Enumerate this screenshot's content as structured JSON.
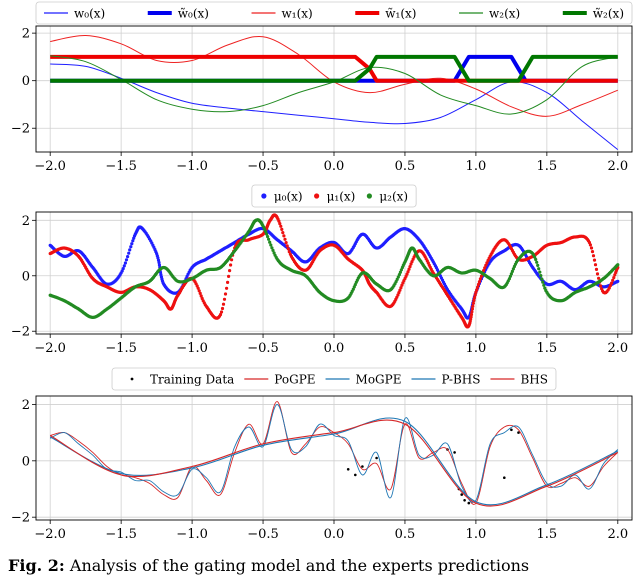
{
  "panels": [
    {
      "id": "gating",
      "xlim": [
        -2.1,
        2.1
      ],
      "ylim": [
        -3.0,
        2.3
      ],
      "yticks": [
        -2,
        0,
        2
      ],
      "xticks": [
        -2.0,
        -1.5,
        -1.0,
        -0.5,
        0.0,
        0.5,
        1.0,
        1.5,
        2.0
      ],
      "xtick_labels": [
        "−2.0",
        "−1.5",
        "−1.0",
        "−0.5",
        "0.0",
        "0.5",
        "1.0",
        "1.5",
        "2.0"
      ],
      "ytick_labels": [
        "−2",
        "0",
        "2"
      ],
      "grid": true,
      "legend": {
        "placement": "top",
        "entries": [
          {
            "label": "w₀(x)",
            "color": "#1f1fff",
            "style": "line",
            "width": "thin"
          },
          {
            "label": "w̃₀(x)",
            "color": "#0000ee",
            "style": "line",
            "width": "thick"
          },
          {
            "label": "w₁(x)",
            "color": "#ee2222",
            "style": "line",
            "width": "thin"
          },
          {
            "label": "w̃₁(x)",
            "color": "#ee0000",
            "style": "line",
            "width": "thick"
          },
          {
            "label": "w₂(x)",
            "color": "#228b22",
            "style": "line",
            "width": "thin"
          },
          {
            "label": "w̃₂(x)",
            "color": "#007700",
            "style": "line",
            "width": "thick"
          }
        ]
      }
    },
    {
      "id": "experts",
      "xlim": [
        -2.1,
        2.1
      ],
      "ylim": [
        -2.1,
        2.3
      ],
      "yticks": [
        -2,
        0,
        2
      ],
      "xticks": [
        -2.0,
        -1.5,
        -1.0,
        -0.5,
        0.0,
        0.5,
        1.0,
        1.5,
        2.0
      ],
      "xtick_labels": [
        "−2.0",
        "−1.5",
        "−1.0",
        "−0.5",
        "0.0",
        "0.5",
        "1.0",
        "1.5",
        "2.0"
      ],
      "ytick_labels": [
        "−2",
        "0",
        "2"
      ],
      "grid": true,
      "legend": {
        "placement": "top",
        "entries": [
          {
            "label": "μ₀(x)",
            "color": "#1f1fff",
            "style": "marker"
          },
          {
            "label": "μ₁(x)",
            "color": "#ee1111",
            "style": "marker"
          },
          {
            "label": "μ₂(x)",
            "color": "#228b22",
            "style": "marker"
          }
        ]
      }
    },
    {
      "id": "predictions",
      "xlim": [
        -2.1,
        2.1
      ],
      "ylim": [
        -2.1,
        2.3
      ],
      "yticks": [
        -2,
        0,
        2
      ],
      "xticks": [
        -2.0,
        -1.5,
        -1.0,
        -0.5,
        0.0,
        0.5,
        1.0,
        1.5,
        2.0
      ],
      "xtick_labels": [
        "−2.0",
        "−1.5",
        "−1.0",
        "−0.5",
        "0.0",
        "0.5",
        "1.0",
        "1.5",
        "2.0"
      ],
      "ytick_labels": [
        "−2",
        "0",
        "2"
      ],
      "grid": true,
      "legend": {
        "placement": "top",
        "entries": [
          {
            "label": "Training Data",
            "color": "#000000",
            "style": "dot"
          },
          {
            "label": "PoGPE",
            "color": "#d62728",
            "style": "line"
          },
          {
            "label": "MoGPE",
            "color": "#1f77b4",
            "style": "line"
          },
          {
            "label": "P-BHS",
            "color": "#1f77b4",
            "style": "line"
          },
          {
            "label": "BHS",
            "color": "#d62728",
            "style": "line"
          }
        ]
      }
    }
  ],
  "chart_data": [
    {
      "type": "line",
      "panel": "gating",
      "series": [
        {
          "name": "w₀(x)",
          "color": "#1f1fff",
          "x": [
            -2.0,
            -1.75,
            -1.5,
            -1.25,
            -1.0,
            -0.75,
            -0.5,
            -0.25,
            0.0,
            0.25,
            0.5,
            0.75,
            1.0,
            1.25,
            1.5,
            1.75,
            2.0
          ],
          "y": [
            0.7,
            0.6,
            0.1,
            -0.5,
            -0.95,
            -1.15,
            -1.3,
            -1.45,
            -1.6,
            -1.75,
            -1.8,
            -1.55,
            -0.8,
            -0.05,
            -0.5,
            -1.7,
            -2.9
          ]
        },
        {
          "name": "w̃₀(x)",
          "color": "#0000ee",
          "x": [
            -2.0,
            0.85,
            0.9,
            0.95,
            1.25,
            1.3,
            1.35,
            2.0
          ],
          "y": [
            0,
            0,
            0.5,
            1.0,
            1.0,
            0.5,
            0,
            0
          ]
        },
        {
          "name": "w₁(x)",
          "color": "#ee2222",
          "x": [
            -2.0,
            -1.75,
            -1.5,
            -1.25,
            -1.0,
            -0.75,
            -0.5,
            -0.25,
            0.0,
            0.25,
            0.5,
            0.75,
            1.0,
            1.25,
            1.5,
            1.75,
            2.0
          ],
          "y": [
            1.65,
            1.9,
            1.55,
            0.85,
            0.85,
            1.5,
            1.85,
            1.1,
            -0.05,
            -0.5,
            -0.15,
            0.1,
            -0.35,
            -1.1,
            -1.5,
            -1.0,
            -0.4
          ]
        },
        {
          "name": "w̃₁(x)",
          "color": "#ee0000",
          "x": [
            -2.0,
            0.15,
            0.25,
            0.3,
            2.0
          ],
          "y": [
            1.0,
            1.0,
            0.5,
            0,
            0
          ]
        },
        {
          "name": "w₂(x)",
          "color": "#228b22",
          "x": [
            -2.0,
            -1.75,
            -1.5,
            -1.25,
            -1.0,
            -0.75,
            -0.5,
            -0.25,
            0.0,
            0.25,
            0.5,
            0.75,
            1.0,
            1.25,
            1.5,
            1.75,
            2.0
          ],
          "y": [
            1.05,
            0.8,
            0.05,
            -0.8,
            -1.2,
            -1.3,
            -1.05,
            -0.5,
            -0.05,
            0.55,
            0.3,
            -0.6,
            -1.05,
            -1.4,
            -0.8,
            0.6,
            1.0
          ]
        },
        {
          "name": "w̃₂(x)",
          "color": "#007700",
          "x": [
            -2.0,
            0.15,
            0.25,
            0.3,
            0.85,
            0.9,
            0.95,
            1.3,
            1.35,
            1.4,
            2.0
          ],
          "y": [
            0,
            0,
            0.5,
            1.0,
            1.0,
            0.5,
            0,
            0,
            0.5,
            1.0,
            1.0
          ]
        }
      ],
      "xlabel": "",
      "ylabel": ""
    },
    {
      "type": "scatter",
      "panel": "experts",
      "series": [
        {
          "name": "μ₀(x)",
          "color": "#1f1fff",
          "x": [
            -2.0,
            -1.9,
            -1.8,
            -1.7,
            -1.6,
            -1.5,
            -1.4,
            -1.35,
            -1.25,
            -1.2,
            -1.1,
            -1.0,
            -0.9,
            -0.8,
            -0.7,
            -0.6,
            -0.5,
            -0.4,
            -0.3,
            -0.2,
            -0.1,
            0.0,
            0.1,
            0.2,
            0.3,
            0.4,
            0.5,
            0.6,
            0.7,
            0.8,
            0.9,
            0.95,
            1.0,
            1.1,
            1.2,
            1.3,
            1.4,
            1.5,
            1.6,
            1.7,
            1.8,
            1.9,
            2.0
          ],
          "y": [
            1.1,
            0.7,
            0.9,
            0.3,
            -0.3,
            0.1,
            1.5,
            1.7,
            0.8,
            -0.3,
            -0.6,
            0.3,
            0.6,
            0.9,
            1.2,
            1.5,
            1.7,
            1.3,
            0.9,
            0.5,
            1.0,
            1.2,
            0.8,
            1.5,
            1.0,
            1.4,
            1.7,
            1.3,
            0.5,
            -0.5,
            -1.2,
            -1.5,
            -0.6,
            0.5,
            0.9,
            1.1,
            0.3,
            -0.3,
            -0.2,
            -0.5,
            -0.2,
            -0.4,
            -0.2
          ]
        },
        {
          "name": "μ₁(x)",
          "color": "#ee1111",
          "x": [
            -2.0,
            -1.9,
            -1.8,
            -1.7,
            -1.6,
            -1.5,
            -1.4,
            -1.3,
            -1.2,
            -1.15,
            -1.1,
            -1.0,
            -0.9,
            -0.8,
            -0.7,
            -0.6,
            -0.5,
            -0.45,
            -0.4,
            -0.3,
            -0.2,
            -0.1,
            0.0,
            0.1,
            0.2,
            0.25,
            0.3,
            0.4,
            0.5,
            0.6,
            0.7,
            0.8,
            0.9,
            0.95,
            1.0,
            1.1,
            1.2,
            1.3,
            1.4,
            1.5,
            1.6,
            1.7,
            1.8,
            1.9,
            2.0
          ],
          "y": [
            0.8,
            1.0,
            0.7,
            -0.1,
            -0.4,
            -0.6,
            -0.4,
            -0.5,
            -0.9,
            -1.2,
            -0.7,
            -0.1,
            -1.1,
            -1.4,
            1.0,
            1.3,
            1.5,
            2.0,
            2.1,
            0.7,
            0.2,
            0.9,
            1.1,
            0.6,
            0.2,
            -0.3,
            -0.6,
            -1.1,
            -0.1,
            0.9,
            0.1,
            -0.7,
            -1.5,
            -1.8,
            -0.6,
            0.7,
            1.3,
            0.6,
            0.7,
            1.1,
            1.2,
            1.4,
            1.2,
            -0.6,
            0.3
          ]
        },
        {
          "name": "μ₂(x)",
          "color": "#228b22",
          "x": [
            -2.0,
            -1.9,
            -1.8,
            -1.7,
            -1.6,
            -1.5,
            -1.4,
            -1.3,
            -1.2,
            -1.1,
            -1.0,
            -0.9,
            -0.8,
            -0.7,
            -0.6,
            -0.55,
            -0.5,
            -0.4,
            -0.3,
            -0.2,
            -0.1,
            0.0,
            0.1,
            0.2,
            0.3,
            0.4,
            0.5,
            0.55,
            0.6,
            0.7,
            0.8,
            0.9,
            1.0,
            1.1,
            1.2,
            1.3,
            1.4,
            1.5,
            1.6,
            1.7,
            1.8,
            1.9,
            2.0
          ],
          "y": [
            -0.7,
            -0.9,
            -1.2,
            -1.5,
            -1.2,
            -0.8,
            -0.4,
            -0.2,
            0.3,
            -0.2,
            -0.1,
            0.2,
            0.3,
            0.9,
            1.6,
            2.0,
            1.8,
            0.6,
            0.2,
            0.0,
            -0.6,
            -0.9,
            -0.8,
            0.1,
            -0.3,
            -0.5,
            0.5,
            1.0,
            0.6,
            0.0,
            0.3,
            0.1,
            0.2,
            -0.1,
            -0.4,
            0.6,
            0.8,
            -0.6,
            -0.9,
            -0.6,
            -0.4,
            -0.1,
            0.4
          ]
        }
      ],
      "xlabel": "",
      "ylabel": ""
    },
    {
      "type": "line",
      "panel": "predictions",
      "series": [
        {
          "name": "Training Data",
          "color": "#000000",
          "style": "dots",
          "x": [
            0.1,
            0.15,
            0.2,
            0.3,
            0.8,
            0.85,
            0.88,
            0.9,
            0.92,
            0.95,
            1.2,
            1.25,
            1.3
          ],
          "y": [
            -0.3,
            -0.5,
            -0.2,
            0.1,
            0.4,
            0.3,
            -1.0,
            -1.2,
            -1.4,
            -1.5,
            -0.6,
            1.1,
            1.0
          ]
        },
        {
          "name": "PoGPE",
          "color": "#d62728",
          "x": [
            -2.0,
            -1.9,
            -1.8,
            -1.7,
            -1.6,
            -1.5,
            -1.4,
            -1.3,
            -1.2,
            -1.1,
            -1.0,
            -0.9,
            -0.8,
            -0.7,
            -0.6,
            -0.5,
            -0.4,
            -0.3,
            -0.2,
            -0.1,
            0.0,
            0.1,
            0.2,
            0.3,
            0.4,
            0.5,
            0.6,
            0.7,
            0.8,
            0.9,
            1.0,
            1.1,
            1.2,
            1.3,
            1.4,
            1.5,
            1.6,
            1.7,
            1.8,
            1.9,
            2.0
          ],
          "y": [
            0.9,
            1.0,
            0.7,
            0.3,
            -0.2,
            -0.5,
            -0.6,
            -0.8,
            -1.2,
            -1.3,
            -0.2,
            -0.7,
            -1.2,
            0.3,
            1.3,
            0.6,
            2.1,
            0.3,
            0.6,
            1.2,
            1.0,
            0.6,
            -0.3,
            -0.1,
            -1.0,
            1.3,
            0.1,
            0.3,
            0.4,
            -0.8,
            -1.5,
            0.5,
            1.2,
            1.1,
            0.1,
            -0.9,
            -0.8,
            -0.6,
            -0.9,
            -0.2,
            0.3
          ]
        },
        {
          "name": "MoGPE",
          "color": "#1f77b4",
          "x": [
            -2.0,
            -1.9,
            -1.8,
            -1.7,
            -1.6,
            -1.5,
            -1.4,
            -1.3,
            -1.2,
            -1.1,
            -1.0,
            -0.9,
            -0.8,
            -0.7,
            -0.6,
            -0.5,
            -0.4,
            -0.3,
            -0.2,
            -0.1,
            0.0,
            0.1,
            0.2,
            0.3,
            0.4,
            0.5,
            0.6,
            0.7,
            0.8,
            0.9,
            1.0,
            1.1,
            1.2,
            1.3,
            1.4,
            1.5,
            1.6,
            1.7,
            1.8,
            1.9,
            2.0
          ],
          "y": [
            0.8,
            1.0,
            0.6,
            0.2,
            -0.3,
            -0.4,
            -0.7,
            -0.7,
            -1.1,
            -1.2,
            -0.3,
            -0.6,
            -1.1,
            0.5,
            1.2,
            0.5,
            2.0,
            0.4,
            0.5,
            1.3,
            0.9,
            0.7,
            -0.5,
            0.3,
            -1.3,
            1.5,
            0.2,
            0.2,
            0.6,
            -0.9,
            -1.4,
            0.6,
            1.0,
            1.2,
            0.2,
            -0.8,
            -0.9,
            -0.5,
            -1.0,
            -0.1,
            0.4
          ]
        },
        {
          "name": "P-BHS",
          "color": "#1f77b4",
          "x": [
            -2.0,
            -1.5,
            -1.0,
            -0.5,
            0.0,
            0.5,
            1.0,
            1.5,
            2.0
          ],
          "y": [
            0.85,
            -0.45,
            -0.25,
            0.55,
            0.95,
            1.4,
            -1.45,
            -0.85,
            0.35
          ]
        },
        {
          "name": "BHS",
          "color": "#d62728",
          "x": [
            -2.0,
            -1.5,
            -1.0,
            -0.5,
            0.0,
            0.5,
            1.0,
            1.5,
            2.0
          ],
          "y": [
            0.9,
            -0.5,
            -0.2,
            0.6,
            1.0,
            1.3,
            -1.5,
            -0.9,
            0.3
          ]
        }
      ],
      "xlabel": "",
      "ylabel": ""
    }
  ],
  "caption": {
    "label": "Fig. 2:",
    "text": "Analysis of the gating model and the experts predictions"
  }
}
